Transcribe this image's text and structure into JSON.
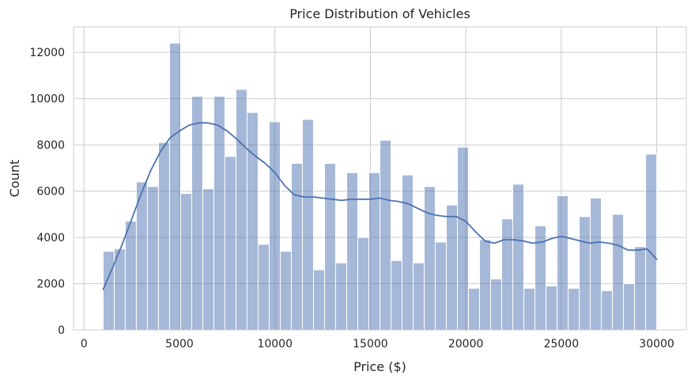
{
  "chart_data": {
    "type": "bar",
    "title": "Price Distribution of Vehicles",
    "xlabel": "Price ($)",
    "ylabel": "Count",
    "xlim": [
      -550,
      31550
    ],
    "ylim": [
      0,
      13100
    ],
    "xticks": [
      0,
      5000,
      10000,
      15000,
      20000,
      25000,
      30000
    ],
    "xtick_labels": [
      "0",
      "5000",
      "10000",
      "15000",
      "20000",
      "25000",
      "30000"
    ],
    "yticks": [
      0,
      2000,
      4000,
      6000,
      8000,
      10000,
      12000
    ],
    "ytick_labels": [
      "0",
      "2000",
      "4000",
      "6000",
      "8000",
      "10000",
      "12000"
    ],
    "grid": true,
    "bins": {
      "start": 1000,
      "width": 580,
      "counts": [
        3400,
        3500,
        4700,
        6400,
        6200,
        8100,
        12400,
        5900,
        10100,
        6100,
        10100,
        7500,
        10400,
        9400,
        3700,
        9000,
        3400,
        7200,
        9100,
        2600,
        7200,
        2900,
        6800,
        4000,
        6800,
        8200,
        3000,
        6700,
        2900,
        6200,
        3800,
        5400,
        7900,
        1800,
        3900,
        2200,
        4800,
        6300,
        1800,
        4500,
        1900,
        5800,
        1800,
        4900,
        5700,
        1700,
        5000,
        2000,
        3600,
        7600
      ]
    },
    "kde": {
      "x": [
        1000,
        1500,
        2000,
        2500,
        3000,
        3500,
        4000,
        4500,
        5000,
        5500,
        6000,
        6500,
        7000,
        7500,
        8000,
        8500,
        9000,
        9500,
        10000,
        10500,
        11000,
        11500,
        12000,
        12500,
        13000,
        13500,
        14000,
        14500,
        15000,
        15500,
        16000,
        16500,
        17000,
        17500,
        18000,
        18500,
        19000,
        19500,
        20000,
        20500,
        21000,
        21500,
        22000,
        22500,
        23000,
        23500,
        24000,
        24500,
        25000,
        25500,
        26000,
        26500,
        27000,
        27500,
        28000,
        28500,
        29000,
        29500,
        30000
      ],
      "y": [
        1750,
        2700,
        3700,
        4800,
        5900,
        6900,
        7700,
        8300,
        8600,
        8850,
        8950,
        8950,
        8850,
        8600,
        8250,
        7850,
        7500,
        7200,
        6800,
        6250,
        5850,
        5750,
        5750,
        5700,
        5650,
        5600,
        5650,
        5650,
        5650,
        5700,
        5600,
        5550,
        5450,
        5250,
        5050,
        4950,
        4900,
        4900,
        4700,
        4250,
        3850,
        3750,
        3900,
        3900,
        3850,
        3750,
        3800,
        3950,
        4050,
        3950,
        3850,
        3750,
        3800,
        3750,
        3650,
        3450,
        3450,
        3500,
        3050
      ]
    },
    "bar_color": "#4c72b0",
    "bar_opacity": 0.5,
    "line_color": "#4c72b0"
  }
}
